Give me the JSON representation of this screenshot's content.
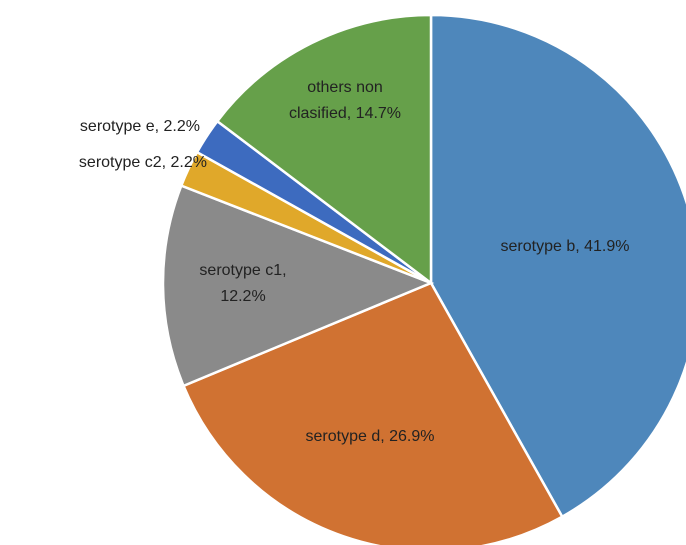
{
  "chart_data": {
    "type": "pie",
    "values": [
      41.9,
      26.9,
      12.2,
      2.2,
      2.2,
      14.7
    ],
    "value_labels": [
      [
        "serotype b, 41.9%"
      ],
      [
        "serotype d, 26.9%"
      ],
      [
        "serotype c1,",
        "12.2%"
      ],
      [
        "serotype c2, 2.2%"
      ],
      [
        "serotype e, 2.2%"
      ],
      [
        "others non",
        "clasified, 14.7%"
      ]
    ],
    "colors": [
      "#4e87bb",
      "#d07232",
      "#8a8a8a",
      "#e0a82a",
      "#3d6bbf",
      "#66a04a"
    ]
  }
}
